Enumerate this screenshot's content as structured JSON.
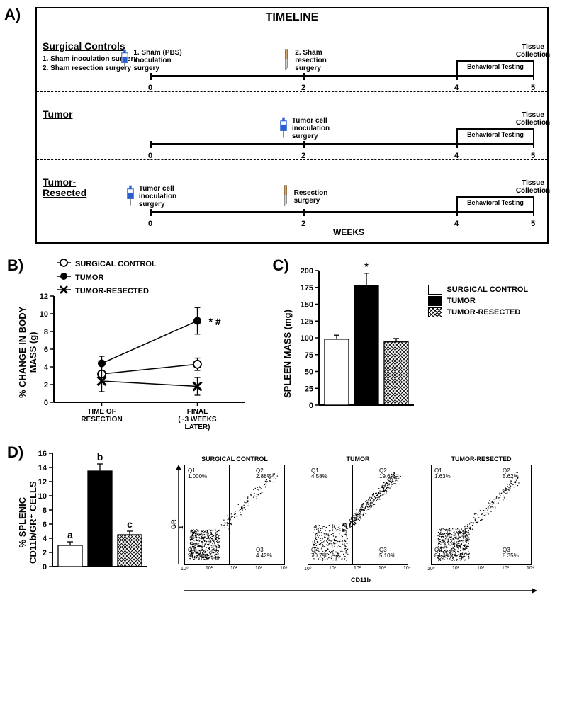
{
  "panelA": {
    "label": "A)",
    "title": "TIMELINE",
    "weeks_label": "WEEKS",
    "ticks": [
      0,
      2,
      4,
      5
    ],
    "rows": [
      {
        "group_label": "Surgical Controls",
        "sub_labels": [
          "1.   Sham inoculation surgery",
          "2.   Sham resection surgery"
        ],
        "events": [
          {
            "week": 0,
            "icon": "syringe",
            "text": "1. Sham (PBS) inoculation surgery",
            "text_side": "right"
          },
          {
            "week": 2,
            "icon": "scalpel",
            "text": "2. Sham resection surgery",
            "text_side": "right"
          }
        ],
        "behavioral_box": {
          "start": 4,
          "end": 5,
          "label": "Behavioral Testing"
        },
        "tissue_label": {
          "week": 5,
          "text": "Tissue Collection"
        }
      },
      {
        "group_label": "Tumor",
        "sub_labels": [],
        "events": [
          {
            "week": 2,
            "icon": "syringe",
            "text": "Tumor cell inoculation surgery",
            "text_side": "right"
          }
        ],
        "behavioral_box": {
          "start": 4,
          "end": 5,
          "label": "Behavioral Testing"
        },
        "tissue_label": {
          "week": 5,
          "text": "Tissue Collection"
        }
      },
      {
        "group_label": "Tumor-\nResected",
        "sub_labels": [],
        "events": [
          {
            "week": 0,
            "icon": "syringe",
            "text": "Tumor cell inoculation surgery",
            "text_side": "right"
          },
          {
            "week": 2,
            "icon": "scalpel",
            "text": "Resection surgery",
            "text_side": "right"
          }
        ],
        "behavioral_box": {
          "start": 4,
          "end": 5,
          "label": "Behavioral Testing"
        },
        "tissue_label": {
          "week": 5,
          "text": "Tissue Collection"
        }
      }
    ]
  },
  "panelB": {
    "label": "B)",
    "type": "line",
    "ylabel": "% CHANGE IN BODY\nMASS (g)",
    "ylim": [
      0,
      12
    ],
    "ytick_step": 2,
    "x_categories": [
      "TIME OF\nRESECTION",
      "FINAL\n(~3 WEEKS\nLATER)"
    ],
    "legend": [
      {
        "name": "SURGICAL CONTROL",
        "marker": "open-circle",
        "line_color": "#000000",
        "fill": "#ffffff"
      },
      {
        "name": "TUMOR",
        "marker": "filled-circle",
        "line_color": "#000000",
        "fill": "#000000"
      },
      {
        "name": "TUMOR-RESECTED",
        "marker": "x",
        "line_color": "#000000",
        "fill": "#000000"
      }
    ],
    "series": {
      "SURGICAL CONTROL": {
        "y": [
          3.2,
          4.3
        ],
        "err": [
          0.4,
          0.7
        ]
      },
      "TUMOR": {
        "y": [
          4.4,
          9.2
        ],
        "err": [
          0.8,
          1.5
        ]
      },
      "TUMOR-RESECTED": {
        "y": [
          2.4,
          1.8
        ],
        "err": [
          1.2,
          1.0
        ]
      }
    },
    "annotation_final_tumor": "* #",
    "line_width": 1.5,
    "marker_size": 6,
    "background_color": "#ffffff"
  },
  "panelC": {
    "label": "C)",
    "type": "bar",
    "ylabel": "SPLEEN MASS (mg)",
    "ylim": [
      0,
      200
    ],
    "ytick_step": 25,
    "categories": [
      "SURGICAL CONTROL",
      "TUMOR",
      "TUMOR-RESECTED"
    ],
    "values": [
      98,
      178,
      94
    ],
    "errors": [
      6,
      18,
      5
    ],
    "bar_fills": [
      "white",
      "black",
      "hatched"
    ],
    "annotations": [
      "",
      "*",
      ""
    ],
    "legend": [
      "SURGICAL CONTROL",
      "TUMOR",
      "TUMOR-RESECTED"
    ],
    "bar_width": 0.75,
    "background_color": "#ffffff",
    "border_color": "#000000"
  },
  "panelD": {
    "label": "D)",
    "bar_chart": {
      "type": "bar",
      "ylabel": "% SPLENIC\nCD11b/GR⁺ CELLS",
      "ylim": [
        0,
        16
      ],
      "ytick_step": 2,
      "categories": [
        "SURGICAL CONTROL",
        "TUMOR",
        "TUMOR-RESECTED"
      ],
      "values": [
        3.0,
        13.5,
        4.5
      ],
      "errors": [
        0.5,
        1.0,
        0.5
      ],
      "bar_fills": [
        "white",
        "black",
        "hatched"
      ],
      "annotations": [
        "a",
        "b",
        "c"
      ]
    },
    "facs": {
      "x_axis": "CD11b",
      "y_axis": "GR-1",
      "log_ticks": [
        "10⁰",
        "10¹",
        "10²",
        "10³",
        "10⁴"
      ],
      "plots": [
        {
          "title": "SURGICAL CONTROL",
          "quadrants": {
            "Q1": "1.000%",
            "Q2": "2.88%",
            "Q3": "4.42%",
            "Q4": "91.7%"
          },
          "density_center": [
            0.2,
            0.2
          ],
          "density_spread": 0.15,
          "tail_toward_q2": 0.15
        },
        {
          "title": "TUMOR",
          "quadrants": {
            "Q1": "4.58%",
            "Q2": "19.6%",
            "Q3": "5.10%",
            "Q4": "70.7%"
          },
          "density_center": [
            0.22,
            0.22
          ],
          "density_spread": 0.18,
          "tail_toward_q2": 0.55
        },
        {
          "title": "TUMOR-RESECTED",
          "quadrants": {
            "Q1": "1.63%",
            "Q2": "5.62%",
            "Q3": "8.35%",
            "Q4": "84.4%"
          },
          "density_center": [
            0.22,
            0.2
          ],
          "density_spread": 0.16,
          "tail_toward_q2": 0.25
        }
      ]
    }
  },
  "colors": {
    "black": "#000000",
    "white": "#ffffff",
    "syringe_blue": "#2a5fd0",
    "scalpel_handle": "#d9a56a"
  }
}
